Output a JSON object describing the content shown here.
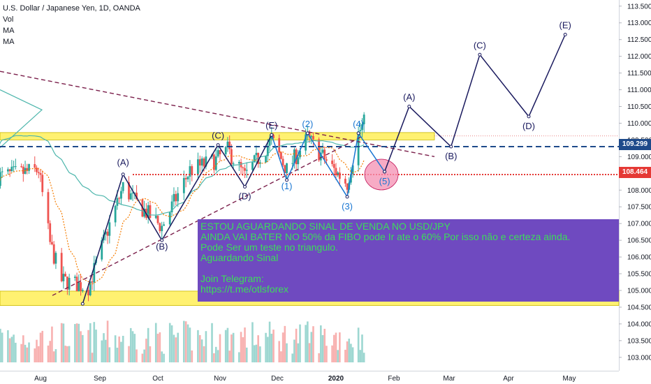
{
  "legend": {
    "symbol": "U.S. Dollar / Japanese Yen, 1D, OANDA",
    "indicators": [
      "Vol",
      "MA",
      "MA"
    ]
  },
  "price_tags": {
    "blue": "109.299",
    "red": "108.464"
  },
  "annotation": {
    "lines": [
      "ESTOU AGUARDANDO SINAL DE VENDA NO USD/JPY",
      "AINDA VAI BATER  NO 50% da FIBO pode Ir ate o 60% Por isso não e certeza ainda.",
      "Pode Ser um teste no triangulo.",
      "Aguardando Sinal",
      "",
      "Join Telegram:",
      "https://t.me/otlsforex"
    ]
  },
  "chart_data": {
    "type": "candlestick",
    "title": "U.S. Dollar / Japanese Yen, 1D, OANDA",
    "xlabel": "",
    "ylabel": "",
    "x_ticks": [
      "Aug",
      "Sep",
      "Oct",
      "Nov",
      "Dec",
      "2020",
      "Feb",
      "Mar",
      "Apr",
      "May"
    ],
    "y_ticks": [
      "113.500",
      "113.000",
      "112.500",
      "112.000",
      "111.500",
      "111.000",
      "110.500",
      "110.000",
      "109.500",
      "109.000",
      "108.500",
      "108.000",
      "107.500",
      "107.000",
      "106.500",
      "106.000",
      "105.500",
      "105.000",
      "104.500",
      "104.000",
      "103.500",
      "103.000"
    ],
    "ylim": [
      102.85,
      113.6
    ],
    "colors": {
      "up": "#26a69a",
      "down": "#ef5350",
      "ma_slow": "#4db6ac",
      "ma_fast": "#f57c00",
      "waves": "#1a1a5e",
      "resistance_zone": "#ffee58",
      "support_line": "#1e4a8a",
      "target_line": "#e53935",
      "trend_line": "#7b1f4b"
    },
    "horizontal_lines": [
      {
        "name": "resistance",
        "value": 109.299
      },
      {
        "name": "support",
        "value": 108.464
      }
    ],
    "zones": [
      {
        "name": "upper-zone",
        "from": 109.5,
        "to": 109.72
      },
      {
        "name": "lower-zone",
        "from": 104.55,
        "to": 104.98
      }
    ],
    "wave_labels": [
      {
        "text": "(A)",
        "date": "2019-09-13",
        "y": 108.55
      },
      {
        "text": "(B)",
        "date": "2019-10-03",
        "y": 106.6
      },
      {
        "text": "(C)",
        "date": "2019-10-31",
        "y": 109.35
      },
      {
        "text": "(D)",
        "date": "2019-11-14",
        "y": 108.1
      },
      {
        "text": "(E)",
        "date": "2019-11-28",
        "y": 109.65
      },
      {
        "text": "(1)",
        "date": "2019-12-06",
        "y": 108.4
      },
      {
        "text": "(2)",
        "date": "2019-12-17",
        "y": 109.7
      },
      {
        "text": "(3)",
        "date": "2020-01-07",
        "y": 107.8
      },
      {
        "text": "(4)",
        "date": "2020-01-13",
        "y": 109.7
      },
      {
        "text": "(5)",
        "date": "2020-01-27",
        "y": 108.55
      },
      {
        "text": "(A)",
        "date": "2020-02-09",
        "y": 110.5
      },
      {
        "text": "(B)",
        "date": "2020-03-02",
        "y": 109.3
      },
      {
        "text": "(C)",
        "date": "2020-03-17",
        "y": 112.05
      },
      {
        "text": "(D)",
        "date": "2020-04-11",
        "y": 110.2
      },
      {
        "text": "(E)",
        "date": "2020-04-29",
        "y": 112.65
      }
    ]
  }
}
